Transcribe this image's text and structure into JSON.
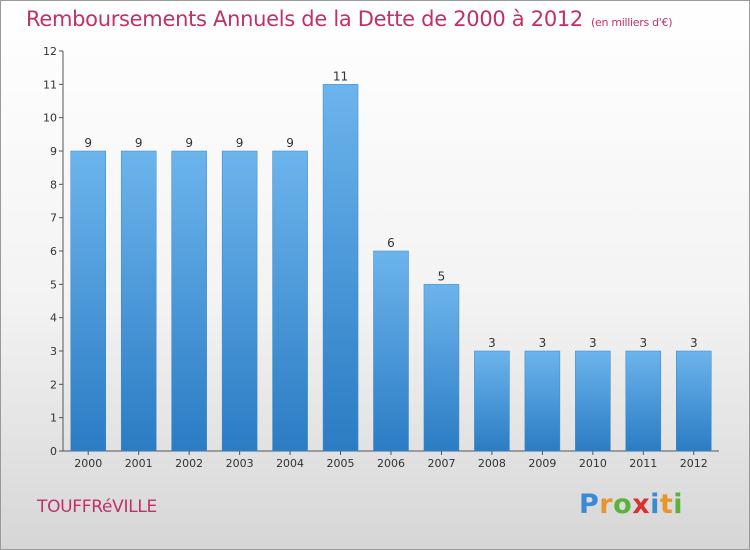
{
  "title": "Remboursements Annuels de la Dette de 2000 à 2012",
  "subtitle": "(en milliers d'€)",
  "town": "TOUFFRéVILLE",
  "logo": {
    "letters": [
      "P",
      "r",
      "o",
      "x",
      "i",
      "t",
      "i"
    ],
    "colors": [
      "#3a8ad6",
      "#e8962c",
      "#59b33a",
      "#d8312e",
      "#3a8ad6",
      "#e8962c",
      "#59b33a"
    ]
  },
  "colors": {
    "bar": "#4f9fdf",
    "bar_light": "#6cb4ec",
    "bar_dark": "#2b7cc4",
    "title": "#c0306a"
  },
  "chart_data": {
    "type": "bar",
    "categories": [
      "2000",
      "2001",
      "2002",
      "2003",
      "2004",
      "2005",
      "2006",
      "2007",
      "2008",
      "2009",
      "2010",
      "2011",
      "2012"
    ],
    "values": [
      9,
      9,
      9,
      9,
      9,
      11,
      6,
      5,
      3,
      3,
      3,
      3,
      3
    ],
    "data_labels": [
      "9",
      "9",
      "9",
      "9",
      "9",
      "11",
      "6",
      "5",
      "3",
      "3",
      "3",
      "3",
      "3"
    ],
    "yticks": [
      0,
      1,
      2,
      3,
      4,
      5,
      6,
      7,
      8,
      9,
      10,
      11,
      12
    ],
    "ylim": [
      0,
      12
    ],
    "grid": false,
    "legend": "none"
  }
}
